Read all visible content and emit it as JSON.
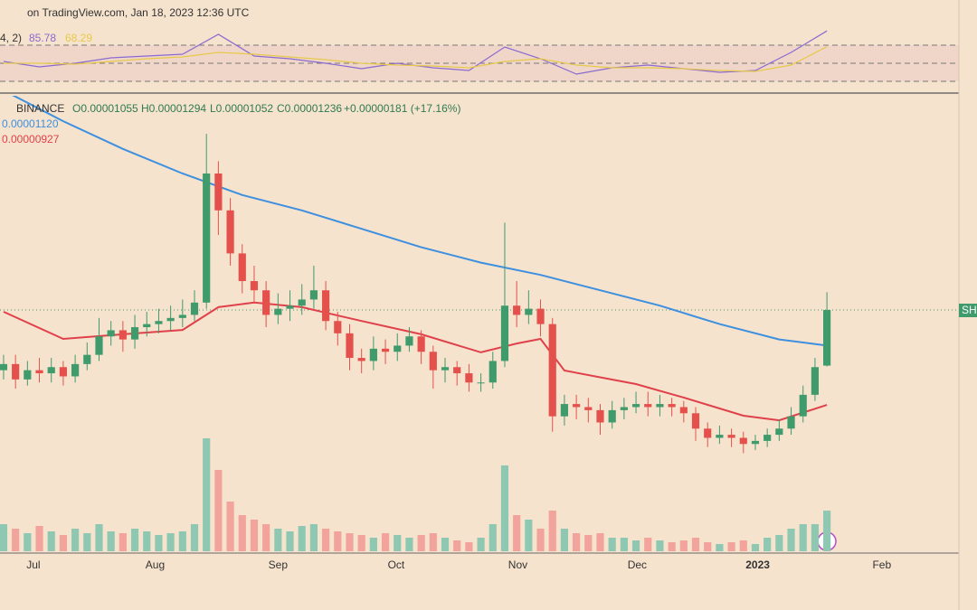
{
  "header": {
    "source": "on TradingView.com, Jan 18, 2023 12:36 UTC",
    "price_tag": "SHI"
  },
  "chart_data": [
    {
      "type": "candlestick",
      "legend": [
        "BINANCE",
        "O0.00001055",
        "H0.00001294",
        "L0.00001052",
        "C0.00001236",
        "+0.00000181 (+17.16%)"
      ],
      "xlim": [
        -0.3,
        80.06
      ],
      "xticks": [
        {
          "value": 2.5,
          "label": "Jul"
        },
        {
          "value": 12.7,
          "label": "Aug"
        },
        {
          "value": 23.0,
          "label": "Sep"
        },
        {
          "value": 32.9,
          "label": "Oct"
        },
        {
          "value": 43.1,
          "label": "Nov"
        },
        {
          "value": 53.1,
          "label": "Dec"
        },
        {
          "value": 63.2,
          "label": "2023"
        },
        {
          "value": 73.6,
          "label": "Feb"
        }
      ],
      "ylim": [
        4.51e-06,
        1.921e-05
      ],
      "y2lim": [
        0,
        500
      ],
      "up_color": "#3f9a6c",
      "down_color": "#e4514d",
      "volume_up_color": "#8ec8b3",
      "volume_down_color": "#f1a39c",
      "open": [
        1.04e-05,
        1.06e-05,
        1.01e-05,
        1.04e-05,
        1.03e-05,
        1.05e-05,
        1.02e-05,
        1.06e-05,
        1.09e-05,
        1.15e-05,
        1.17e-05,
        1.14e-05,
        1.18e-05,
        1.19e-05,
        1.2e-05,
        1.21e-05,
        1.22e-05,
        1.26e-05,
        1.68e-05,
        1.56e-05,
        1.42e-05,
        1.33e-05,
        1.3e-05,
        1.22e-05,
        1.24e-05,
        1.25e-05,
        1.27e-05,
        1.3e-05,
        1.2e-05,
        1.16e-05,
        1.08e-05,
        1.07e-05,
        1.11e-05,
        1.1e-05,
        1.12e-05,
        1.15e-05,
        1.1e-05,
        1.04e-05,
        1.05e-05,
        1.03e-05,
        1e-05,
        1e-05,
        1.07e-05,
        1.25e-05,
        1.22e-05,
        1.24e-05,
        1.19e-05,
        8.9e-06,
        9.3e-06,
        9.2e-06,
        9.1e-06,
        8.7e-06,
        9.1e-06,
        9.2e-06,
        9.3e-06,
        9.2e-06,
        9.3e-06,
        9.2e-06,
        9e-06,
        8.5e-06,
        8.2e-06,
        8.3e-06,
        8.2e-06,
        8e-06,
        8.1e-06,
        8.3e-06,
        8.5e-06,
        8.9e-06,
        9.6e-06,
        1.055e-05
      ],
      "high": [
        1.09e-05,
        1.09e-05,
        1.07e-05,
        1.08e-05,
        1.08e-05,
        1.07e-05,
        1.09e-05,
        1.13e-05,
        1.21e-05,
        1.2e-05,
        1.2e-05,
        1.22e-05,
        1.23e-05,
        1.24e-05,
        1.25e-05,
        1.27e-05,
        1.3e-05,
        1.809e-05,
        1.72e-05,
        1.6e-05,
        1.45e-05,
        1.38e-05,
        1.33e-05,
        1.29e-05,
        1.3e-05,
        1.32e-05,
        1.38e-05,
        1.33e-05,
        1.23e-05,
        1.19e-05,
        1.11e-05,
        1.15e-05,
        1.14e-05,
        1.16e-05,
        1.18e-05,
        1.17e-05,
        1.12e-05,
        1.08e-05,
        1.07e-05,
        1.06e-05,
        1.03e-05,
        1.1e-05,
        1.52e-05,
        1.33e-05,
        1.3e-05,
        1.27e-05,
        1.21e-05,
        9.6e-06,
        9.6e-06,
        9.5e-06,
        9.3e-06,
        9.4e-06,
        9.5e-06,
        9.7e-06,
        9.7e-06,
        9.6e-06,
        9.5e-06,
        9.4e-06,
        9.2e-06,
        8.7e-06,
        8.6e-06,
        8.5e-06,
        8.4e-06,
        8.3e-06,
        8.5e-06,
        8.8e-06,
        9.2e-06,
        9.9e-06,
        1.08e-05,
        1.294e-05
      ],
      "low": [
        1.01e-05,
        9.8e-06,
        9.9e-06,
        1e-05,
        1e-05,
        9.9e-06,
        1e-05,
        1.04e-05,
        1.07e-05,
        1.12e-05,
        1.1e-05,
        1.11e-05,
        1.15e-05,
        1.16e-05,
        1.17e-05,
        1.18e-05,
        1.2e-05,
        1.24e-05,
        1.48e-05,
        1.38e-05,
        1.29e-05,
        1.26e-05,
        1.18e-05,
        1.19e-05,
        1.2e-05,
        1.22e-05,
        1.24e-05,
        1.17e-05,
        1.12e-05,
        1.04e-05,
        1.03e-05,
        1.04e-05,
        1.06e-05,
        1.07e-05,
        1.1e-05,
        1.06e-05,
        9.8e-06,
        1e-05,
        9.9e-06,
        9.7e-06,
        9.7e-06,
        9.8e-06,
        1.05e-05,
        1.18e-05,
        1.19e-05,
        1.15e-05,
        8.4e-06,
        8.6e-06,
        8.8e-06,
        8.7e-06,
        8.3e-06,
        8.5e-06,
        8.8e-06,
        9e-06,
        8.9e-06,
        8.9e-06,
        8.9e-06,
        8.7e-06,
        8.1e-06,
        7.9e-06,
        8e-06,
        7.9e-06,
        7.7e-06,
        7.8e-06,
        7.9e-06,
        8.1e-06,
        8.3e-06,
        8.7e-06,
        9.4e-06,
        1.052e-05
      ],
      "close": [
        1.06e-05,
        1.01e-05,
        1.04e-05,
        1.03e-05,
        1.05e-05,
        1.02e-05,
        1.06e-05,
        1.09e-05,
        1.15e-05,
        1.17e-05,
        1.14e-05,
        1.18e-05,
        1.19e-05,
        1.2e-05,
        1.21e-05,
        1.22e-05,
        1.26e-05,
        1.68e-05,
        1.56e-05,
        1.42e-05,
        1.33e-05,
        1.3e-05,
        1.22e-05,
        1.24e-05,
        1.25e-05,
        1.27e-05,
        1.3e-05,
        1.2e-05,
        1.16e-05,
        1.08e-05,
        1.07e-05,
        1.11e-05,
        1.1e-05,
        1.12e-05,
        1.15e-05,
        1.1e-05,
        1.04e-05,
        1.05e-05,
        1.03e-05,
        1e-05,
        1e-05,
        1.07e-05,
        1.25e-05,
        1.22e-05,
        1.24e-05,
        1.19e-05,
        8.9e-06,
        9.3e-06,
        9.2e-06,
        9.1e-06,
        8.7e-06,
        9.1e-06,
        9.2e-06,
        9.3e-06,
        9.2e-06,
        9.3e-06,
        9.2e-06,
        9e-06,
        8.5e-06,
        8.2e-06,
        8.3e-06,
        8.2e-06,
        8e-06,
        8.1e-06,
        8.3e-06,
        8.5e-06,
        8.9e-06,
        9.6e-06,
        1.05e-05,
        1.236e-05
      ],
      "volume": [
        30,
        25,
        20,
        28,
        22,
        18,
        25,
        20,
        30,
        22,
        20,
        25,
        22,
        18,
        20,
        22,
        30,
        125,
        90,
        55,
        40,
        35,
        30,
        25,
        22,
        28,
        30,
        25,
        22,
        20,
        18,
        15,
        20,
        18,
        15,
        18,
        20,
        15,
        12,
        10,
        15,
        30,
        95,
        40,
        35,
        25,
        45,
        25,
        20,
        18,
        20,
        15,
        15,
        12,
        15,
        12,
        10,
        12,
        15,
        10,
        8,
        10,
        12,
        8,
        15,
        18,
        25,
        30,
        30,
        45
      ],
      "series": [
        {
          "label": "0.00001120",
          "color": "#3d8fe0",
          "x": [
            0,
            5,
            10,
            15,
            20,
            25,
            30,
            35,
            40,
            45,
            50,
            55,
            60,
            65,
            69
          ],
          "values": [
            1.95e-05,
            1.85e-05,
            1.76e-05,
            1.68e-05,
            1.61e-05,
            1.56e-05,
            1.5e-05,
            1.44e-05,
            1.39e-05,
            1.35e-05,
            1.3e-05,
            1.25e-05,
            1.19e-05,
            1.14e-05,
            1.12e-05
          ]
        },
        {
          "label": "0.00000927",
          "color": "#e0404a",
          "x": [
            0,
            5,
            10,
            15,
            18,
            21,
            25,
            30,
            35,
            40,
            43,
            45,
            47,
            53,
            57,
            62,
            65,
            69
          ],
          "values": [
            1.23e-05,
            1.142e-05,
            1.157e-05,
            1.171e-05,
            1.245e-05,
            1.26e-05,
            1.245e-05,
            1.2e-05,
            1.157e-05,
            1.098e-05,
            1.127e-05,
            1.142e-05,
            1.039e-05,
            9.95e-06,
            9.51e-06,
            8.92e-06,
            8.77e-06,
            9.27e-06
          ]
        }
      ]
    },
    {
      "type": "line",
      "legend": [
        "4, 2)",
        "85.78",
        "68.29"
      ],
      "xlim": [
        -0.3,
        80.06
      ],
      "ylim": [
        20,
        90
      ],
      "levels": [
        70,
        50,
        30
      ],
      "series": [
        {
          "color": "#8a6ad0",
          "x": [
            0,
            3,
            6,
            9,
            12,
            15,
            18,
            21,
            24,
            27,
            30,
            33,
            36,
            39,
            42,
            45,
            48,
            51,
            54,
            57,
            60,
            63,
            66,
            69
          ],
          "values": [
            52,
            46,
            50,
            56,
            58,
            60,
            82,
            58,
            55,
            50,
            44,
            50,
            45,
            42,
            68,
            55,
            38,
            45,
            48,
            44,
            40,
            42,
            62,
            85.78
          ]
        },
        {
          "color": "#e6c94a",
          "x": [
            0,
            3,
            6,
            9,
            12,
            15,
            18,
            21,
            24,
            27,
            30,
            33,
            36,
            39,
            42,
            45,
            48,
            51,
            54,
            57,
            60,
            63,
            66,
            69
          ],
          "values": [
            50,
            50,
            49,
            52,
            55,
            57,
            62,
            60,
            57,
            54,
            50,
            48,
            47,
            45,
            52,
            55,
            48,
            45,
            45,
            44,
            42,
            41,
            48,
            68.29
          ]
        }
      ]
    }
  ]
}
